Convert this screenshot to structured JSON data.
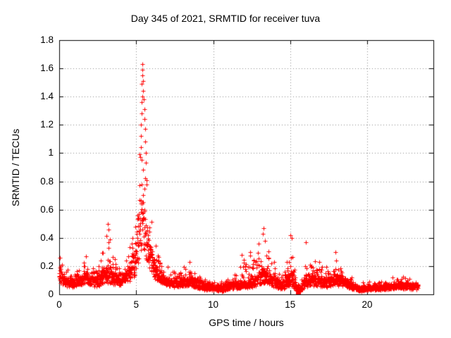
{
  "chart_data": {
    "type": "scatter",
    "title": "Day 345 of 2021, SRMTID for receiver tuva",
    "xlabel": "GPS time / hours",
    "ylabel": "SRMTID / TECUs",
    "xlim": [
      0,
      24.3
    ],
    "ylim": [
      0,
      1.8
    ],
    "x_ticks": [
      0,
      5,
      10,
      15,
      20
    ],
    "x_tick_labels": [
      "0",
      "5",
      "10",
      "15",
      "20"
    ],
    "y_ticks": [
      0,
      0.2,
      0.4,
      0.6,
      0.8,
      1.0,
      1.2,
      1.4,
      1.6,
      1.8
    ],
    "y_tick_labels": [
      "0",
      "0.2",
      "0.4",
      "0.6",
      "0.8",
      "1",
      "1.2",
      "1.4",
      "1.6",
      "1.8"
    ],
    "grid": true,
    "grid_color": "#8a8a8a",
    "marker": "plus",
    "marker_color": "#ff0000",
    "x_data_range": [
      0,
      23.3
    ],
    "sampling_step_hours": 0.0085,
    "seed": 20210345,
    "envelope": {
      "columns": [
        "hour",
        "min",
        "typical",
        "max"
      ],
      "points": [
        [
          0.0,
          0.08,
          0.18,
          0.27
        ],
        [
          0.3,
          0.06,
          0.12,
          0.2
        ],
        [
          0.8,
          0.05,
          0.1,
          0.16
        ],
        [
          1.3,
          0.06,
          0.12,
          0.2
        ],
        [
          1.7,
          0.08,
          0.16,
          0.28
        ],
        [
          2.1,
          0.06,
          0.12,
          0.2
        ],
        [
          2.5,
          0.05,
          0.12,
          0.22
        ],
        [
          2.9,
          0.07,
          0.18,
          0.42
        ],
        [
          3.2,
          0.08,
          0.2,
          0.52
        ],
        [
          3.5,
          0.07,
          0.16,
          0.35
        ],
        [
          3.9,
          0.06,
          0.12,
          0.22
        ],
        [
          4.3,
          0.08,
          0.16,
          0.3
        ],
        [
          4.7,
          0.1,
          0.22,
          0.5
        ],
        [
          5.0,
          0.15,
          0.4,
          0.8
        ],
        [
          5.2,
          0.25,
          0.6,
          1.1
        ],
        [
          5.4,
          0.3,
          0.75,
          1.64
        ],
        [
          5.6,
          0.25,
          0.65,
          1.4
        ],
        [
          5.8,
          0.2,
          0.45,
          0.9
        ],
        [
          6.0,
          0.15,
          0.3,
          0.6
        ],
        [
          6.3,
          0.1,
          0.2,
          0.38
        ],
        [
          6.7,
          0.07,
          0.14,
          0.25
        ],
        [
          7.2,
          0.05,
          0.1,
          0.18
        ],
        [
          7.8,
          0.05,
          0.1,
          0.17
        ],
        [
          8.3,
          0.06,
          0.12,
          0.23
        ],
        [
          8.8,
          0.05,
          0.11,
          0.18
        ],
        [
          9.4,
          0.03,
          0.08,
          0.13
        ],
        [
          10.0,
          0.03,
          0.07,
          0.12
        ],
        [
          10.6,
          0.02,
          0.06,
          0.11
        ],
        [
          11.2,
          0.04,
          0.08,
          0.15
        ],
        [
          11.8,
          0.04,
          0.09,
          0.28
        ],
        [
          12.3,
          0.04,
          0.09,
          0.3
        ],
        [
          12.8,
          0.06,
          0.14,
          0.32
        ],
        [
          13.2,
          0.08,
          0.18,
          0.47
        ],
        [
          13.6,
          0.07,
          0.16,
          0.35
        ],
        [
          14.0,
          0.05,
          0.12,
          0.25
        ],
        [
          14.4,
          0.03,
          0.08,
          0.15
        ],
        [
          14.8,
          0.05,
          0.12,
          0.3
        ],
        [
          15.0,
          0.06,
          0.18,
          0.42
        ],
        [
          15.2,
          0.05,
          0.14,
          0.38
        ],
        [
          15.45,
          0.02,
          0.04,
          0.08
        ],
        [
          15.7,
          0.02,
          0.05,
          0.12
        ],
        [
          16.0,
          0.05,
          0.14,
          0.38
        ],
        [
          16.4,
          0.06,
          0.14,
          0.3
        ],
        [
          16.9,
          0.05,
          0.12,
          0.25
        ],
        [
          17.4,
          0.05,
          0.11,
          0.22
        ],
        [
          17.9,
          0.06,
          0.13,
          0.3
        ],
        [
          18.3,
          0.06,
          0.12,
          0.22
        ],
        [
          18.7,
          0.05,
          0.1,
          0.18
        ],
        [
          19.1,
          0.03,
          0.06,
          0.11
        ],
        [
          19.6,
          0.02,
          0.05,
          0.09
        ],
        [
          20.1,
          0.03,
          0.05,
          0.09
        ],
        [
          20.6,
          0.03,
          0.06,
          0.1
        ],
        [
          21.1,
          0.03,
          0.06,
          0.11
        ],
        [
          21.6,
          0.04,
          0.07,
          0.12
        ],
        [
          22.1,
          0.04,
          0.08,
          0.13
        ],
        [
          22.6,
          0.04,
          0.08,
          0.13
        ],
        [
          23.0,
          0.03,
          0.07,
          0.12
        ],
        [
          23.3,
          0.04,
          0.08,
          0.12
        ]
      ]
    },
    "extra_points": [
      [
        5.38,
        1.63
      ],
      [
        5.41,
        1.59
      ],
      [
        5.39,
        1.55
      ],
      [
        5.44,
        1.51
      ],
      [
        5.36,
        1.49
      ],
      [
        5.46,
        1.44
      ],
      [
        5.42,
        1.4
      ],
      [
        5.49,
        1.38
      ],
      [
        5.37,
        1.36
      ],
      [
        5.52,
        1.31
      ],
      [
        5.34,
        1.28
      ],
      [
        5.55,
        1.24
      ],
      [
        5.33,
        1.2
      ],
      [
        5.58,
        1.17
      ],
      [
        5.31,
        1.12
      ],
      [
        5.6,
        1.08
      ],
      [
        5.29,
        1.04
      ],
      [
        5.62,
        1.0
      ],
      [
        5.27,
        0.97
      ],
      [
        5.64,
        0.93
      ],
      [
        3.15,
        0.5
      ],
      [
        3.22,
        0.46
      ],
      [
        4.92,
        0.48
      ],
      [
        13.28,
        0.47
      ],
      [
        13.22,
        0.43
      ],
      [
        15.02,
        0.42
      ],
      [
        15.08,
        0.4
      ],
      [
        16.02,
        0.37
      ],
      [
        11.85,
        0.28
      ],
      [
        12.42,
        0.3
      ],
      [
        17.92,
        0.3
      ],
      [
        0.05,
        0.26
      ],
      [
        1.75,
        0.27
      ],
      [
        8.45,
        0.23
      ]
    ],
    "square_point": [
      15.5,
      0.02
    ]
  }
}
